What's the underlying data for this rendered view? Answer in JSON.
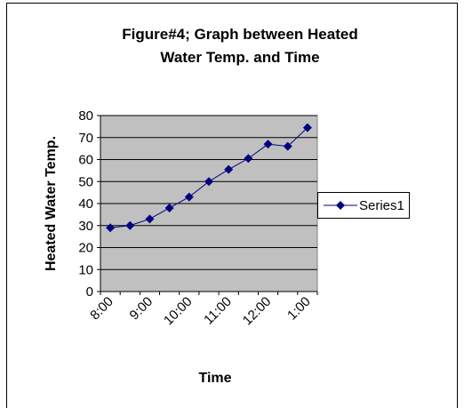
{
  "chart_data": {
    "type": "line",
    "title": [
      "Figure#4; Graph between Heated",
      "Water Temp. and Time"
    ],
    "x_label": "Time",
    "y_label": "Heated Water Temp.",
    "categories": [
      "8:00",
      null,
      "9:00",
      null,
      "10:00",
      null,
      "11:00",
      null,
      "12:00",
      null,
      "1:00"
    ],
    "series": [
      {
        "name": "Series1",
        "color": "#000080",
        "values": [
          29,
          30,
          33,
          38,
          43,
          50,
          55.5,
          60.5,
          67,
          66,
          74.5
        ]
      }
    ],
    "ylim": [
      0,
      80
    ],
    "yticks": [
      0,
      10,
      20,
      30,
      40,
      50,
      60,
      70,
      80
    ],
    "grid": true,
    "legend": "right"
  }
}
